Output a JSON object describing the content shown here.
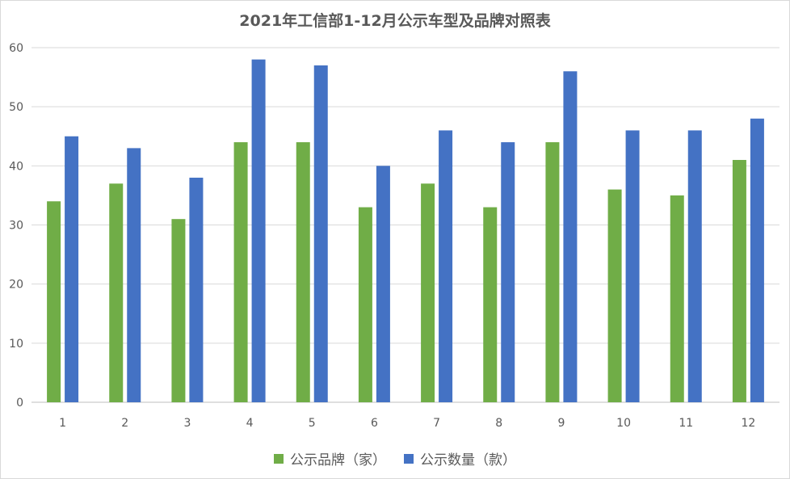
{
  "chart_data": {
    "type": "bar",
    "title": "2021年工信部1-12月公示车型及品牌对照表",
    "categories": [
      "1",
      "2",
      "3",
      "4",
      "5",
      "6",
      "7",
      "8",
      "9",
      "10",
      "11",
      "12"
    ],
    "series": [
      {
        "name": "公示品牌（家）",
        "color": "#70ad47",
        "values": [
          34,
          37,
          31,
          44,
          44,
          33,
          37,
          33,
          44,
          36,
          35,
          41
        ]
      },
      {
        "name": "公示数量（款）",
        "color": "#4472c4",
        "values": [
          45,
          43,
          38,
          58,
          57,
          40,
          46,
          44,
          56,
          46,
          46,
          48
        ]
      }
    ],
    "ylim": [
      0,
      60
    ],
    "yticks": [
      "0",
      "10",
      "20",
      "30",
      "40",
      "50",
      "60"
    ],
    "grid": true,
    "legend_position": "bottom"
  }
}
